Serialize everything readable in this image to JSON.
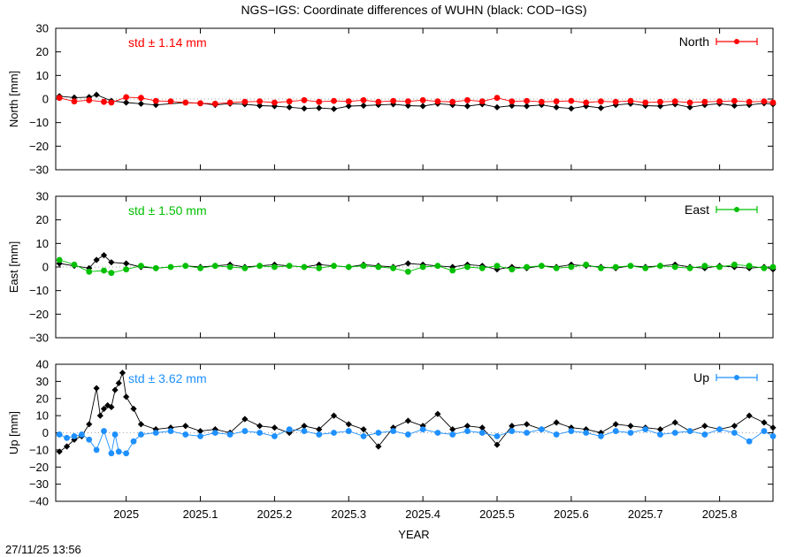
{
  "title": "NGS−IGS: Coordinate differences of WUHN (black: COD−IGS)",
  "footer_timestamp": "27/11/25 13:56",
  "chart_data": [
    {
      "type": "line",
      "component": "North",
      "ylabel": "North [mm]",
      "std_label": "std ± 1.14 mm",
      "legend": "North",
      "legend_position": "top-right",
      "ylim": [
        -30,
        30
      ],
      "yticks": [
        -30,
        -20,
        -10,
        0,
        10,
        20,
        30
      ],
      "color": "#ff0000",
      "reference_color": "#000000",
      "reference_series": [
        [
          2024.91,
          1.2
        ],
        [
          2024.93,
          0.6
        ],
        [
          2024.95,
          0.8
        ],
        [
          2024.96,
          1.8
        ],
        [
          2024.98,
          -0.8
        ],
        [
          2025.0,
          -1.5
        ],
        [
          2025.02,
          -2.0
        ],
        [
          2025.04,
          -2.5
        ],
        [
          2025.08,
          -1.5
        ],
        [
          2025.1,
          -1.8
        ],
        [
          2025.12,
          -2.5
        ],
        [
          2025.14,
          -2.0
        ],
        [
          2025.16,
          -2.2
        ],
        [
          2025.18,
          -2.8
        ],
        [
          2025.2,
          -3.0
        ],
        [
          2025.22,
          -3.5
        ],
        [
          2025.24,
          -4.0
        ],
        [
          2025.26,
          -3.8
        ],
        [
          2025.28,
          -4.2
        ],
        [
          2025.3,
          -3.0
        ],
        [
          2025.32,
          -2.8
        ],
        [
          2025.34,
          -2.5
        ],
        [
          2025.36,
          -2.2
        ],
        [
          2025.38,
          -2.8
        ],
        [
          2025.4,
          -3.0
        ],
        [
          2025.42,
          -2.0
        ],
        [
          2025.44,
          -2.5
        ],
        [
          2025.46,
          -3.0
        ],
        [
          2025.48,
          -2.2
        ],
        [
          2025.5,
          -3.5
        ],
        [
          2025.52,
          -2.8
        ],
        [
          2025.54,
          -3.0
        ],
        [
          2025.56,
          -2.5
        ],
        [
          2025.58,
          -3.5
        ],
        [
          2025.6,
          -4.0
        ],
        [
          2025.62,
          -3.0
        ],
        [
          2025.64,
          -3.8
        ],
        [
          2025.66,
          -2.5
        ],
        [
          2025.68,
          -2.0
        ],
        [
          2025.7,
          -2.8
        ],
        [
          2025.72,
          -3.0
        ],
        [
          2025.74,
          -2.2
        ],
        [
          2025.76,
          -3.5
        ],
        [
          2025.78,
          -2.5
        ],
        [
          2025.8,
          -2.0
        ],
        [
          2025.82,
          -2.8
        ],
        [
          2025.84,
          -2.5
        ],
        [
          2025.86,
          -1.8
        ],
        [
          2025.872,
          -2.2
        ]
      ],
      "series": [
        [
          2024.91,
          0.5
        ],
        [
          2024.93,
          -1.0
        ],
        [
          2024.95,
          -0.5
        ],
        [
          2024.97,
          -1.2
        ],
        [
          2024.98,
          -1.5
        ],
        [
          2025.0,
          0.8
        ],
        [
          2025.02,
          0.5
        ],
        [
          2025.04,
          -0.8
        ],
        [
          2025.06,
          -1.0
        ],
        [
          2025.08,
          -1.5
        ],
        [
          2025.1,
          -1.8
        ],
        [
          2025.12,
          -2.0
        ],
        [
          2025.14,
          -1.5
        ],
        [
          2025.16,
          -1.2
        ],
        [
          2025.18,
          -1.0
        ],
        [
          2025.2,
          -1.5
        ],
        [
          2025.22,
          -1.0
        ],
        [
          2025.24,
          -0.5
        ],
        [
          2025.26,
          -1.2
        ],
        [
          2025.28,
          -0.8
        ],
        [
          2025.3,
          -1.0
        ],
        [
          2025.32,
          -0.5
        ],
        [
          2025.34,
          -1.2
        ],
        [
          2025.36,
          -0.8
        ],
        [
          2025.38,
          -1.0
        ],
        [
          2025.4,
          -0.5
        ],
        [
          2025.42,
          -1.0
        ],
        [
          2025.44,
          -1.2
        ],
        [
          2025.46,
          -0.5
        ],
        [
          2025.48,
          -1.0
        ],
        [
          2025.5,
          0.5
        ],
        [
          2025.52,
          -1.0
        ],
        [
          2025.54,
          -0.8
        ],
        [
          2025.56,
          -1.2
        ],
        [
          2025.58,
          -1.0
        ],
        [
          2025.6,
          -0.8
        ],
        [
          2025.62,
          -1.5
        ],
        [
          2025.64,
          -1.0
        ],
        [
          2025.66,
          -1.2
        ],
        [
          2025.68,
          -0.8
        ],
        [
          2025.7,
          -1.5
        ],
        [
          2025.72,
          -1.2
        ],
        [
          2025.74,
          -1.0
        ],
        [
          2025.76,
          -1.5
        ],
        [
          2025.78,
          -1.2
        ],
        [
          2025.8,
          -1.0
        ],
        [
          2025.82,
          -0.8
        ],
        [
          2025.84,
          -1.2
        ],
        [
          2025.86,
          -1.0
        ],
        [
          2025.872,
          -1.5
        ]
      ]
    },
    {
      "type": "line",
      "component": "East",
      "ylabel": "East [mm]",
      "std_label": "std ± 1.50 mm",
      "legend": "East",
      "legend_position": "top-right",
      "ylim": [
        -30,
        30
      ],
      "yticks": [
        -30,
        -20,
        -10,
        0,
        10,
        20,
        30
      ],
      "color": "#00c000",
      "reference_color": "#000000",
      "reference_series": [
        [
          2024.91,
          1.5
        ],
        [
          2024.93,
          0.5
        ],
        [
          2024.95,
          -0.5
        ],
        [
          2024.96,
          3.0
        ],
        [
          2024.97,
          5.0
        ],
        [
          2024.98,
          2.0
        ],
        [
          2025.0,
          1.5
        ],
        [
          2025.02,
          0.0
        ],
        [
          2025.04,
          -0.5
        ],
        [
          2025.08,
          0.5
        ],
        [
          2025.1,
          0.0
        ],
        [
          2025.12,
          0.5
        ],
        [
          2025.14,
          1.0
        ],
        [
          2025.16,
          0.0
        ],
        [
          2025.18,
          0.5
        ],
        [
          2025.2,
          1.0
        ],
        [
          2025.22,
          0.5
        ],
        [
          2025.24,
          0.0
        ],
        [
          2025.26,
          1.0
        ],
        [
          2025.28,
          0.5
        ],
        [
          2025.3,
          0.0
        ],
        [
          2025.32,
          1.0
        ],
        [
          2025.34,
          0.5
        ],
        [
          2025.36,
          0.0
        ],
        [
          2025.38,
          1.5
        ],
        [
          2025.4,
          1.0
        ],
        [
          2025.42,
          0.5
        ],
        [
          2025.44,
          0.0
        ],
        [
          2025.46,
          1.0
        ],
        [
          2025.48,
          0.5
        ],
        [
          2025.5,
          -1.0
        ],
        [
          2025.52,
          0.0
        ],
        [
          2025.54,
          -0.5
        ],
        [
          2025.56,
          0.5
        ],
        [
          2025.58,
          0.0
        ],
        [
          2025.6,
          1.0
        ],
        [
          2025.62,
          0.5
        ],
        [
          2025.64,
          0.0
        ],
        [
          2025.66,
          -0.5
        ],
        [
          2025.68,
          0.5
        ],
        [
          2025.7,
          0.0
        ],
        [
          2025.72,
          0.5
        ],
        [
          2025.74,
          1.0
        ],
        [
          2025.76,
          0.0
        ],
        [
          2025.78,
          -0.5
        ],
        [
          2025.8,
          0.5
        ],
        [
          2025.82,
          0.0
        ],
        [
          2025.84,
          -0.5
        ],
        [
          2025.86,
          0.0
        ],
        [
          2025.872,
          -1.0
        ]
      ],
      "series": [
        [
          2024.91,
          3.0
        ],
        [
          2024.93,
          1.0
        ],
        [
          2024.95,
          -2.0
        ],
        [
          2024.97,
          -1.5
        ],
        [
          2024.98,
          -2.5
        ],
        [
          2025.0,
          -1.0
        ],
        [
          2025.02,
          0.5
        ],
        [
          2025.04,
          -0.5
        ],
        [
          2025.06,
          0.0
        ],
        [
          2025.08,
          0.5
        ],
        [
          2025.1,
          -0.5
        ],
        [
          2025.12,
          0.5
        ],
        [
          2025.14,
          0.0
        ],
        [
          2025.16,
          -0.5
        ],
        [
          2025.18,
          0.5
        ],
        [
          2025.2,
          0.0
        ],
        [
          2025.22,
          0.5
        ],
        [
          2025.24,
          0.0
        ],
        [
          2025.26,
          -0.5
        ],
        [
          2025.28,
          0.5
        ],
        [
          2025.3,
          0.0
        ],
        [
          2025.32,
          0.5
        ],
        [
          2025.34,
          0.0
        ],
        [
          2025.36,
          -0.5
        ],
        [
          2025.38,
          -2.0
        ],
        [
          2025.4,
          0.0
        ],
        [
          2025.42,
          0.5
        ],
        [
          2025.44,
          -1.5
        ],
        [
          2025.46,
          0.0
        ],
        [
          2025.48,
          -0.5
        ],
        [
          2025.5,
          0.5
        ],
        [
          2025.52,
          -1.0
        ],
        [
          2025.54,
          0.0
        ],
        [
          2025.56,
          0.5
        ],
        [
          2025.58,
          -0.5
        ],
        [
          2025.6,
          0.0
        ],
        [
          2025.62,
          1.0
        ],
        [
          2025.64,
          -0.5
        ],
        [
          2025.66,
          0.0
        ],
        [
          2025.68,
          0.5
        ],
        [
          2025.7,
          -0.5
        ],
        [
          2025.72,
          0.5
        ],
        [
          2025.74,
          0.0
        ],
        [
          2025.76,
          -0.5
        ],
        [
          2025.78,
          0.5
        ],
        [
          2025.8,
          0.0
        ],
        [
          2025.82,
          1.0
        ],
        [
          2025.84,
          0.5
        ],
        [
          2025.86,
          -0.5
        ],
        [
          2025.872,
          0.0
        ]
      ]
    },
    {
      "type": "line",
      "component": "Up",
      "ylabel": "Up [mm]",
      "std_label": "std ± 3.62 mm",
      "legend": "Up",
      "legend_position": "top-right",
      "ylim": [
        -40,
        40
      ],
      "yticks": [
        -40,
        -30,
        -20,
        -10,
        0,
        10,
        20,
        30,
        40
      ],
      "color": "#1e90ff",
      "reference_color": "#000000",
      "reference_series": [
        [
          2024.91,
          -11.0
        ],
        [
          2024.92,
          -8.0
        ],
        [
          2024.93,
          -4.0
        ],
        [
          2024.94,
          -2.0
        ],
        [
          2024.95,
          5.0
        ],
        [
          2024.96,
          26.0
        ],
        [
          2024.965,
          10.0
        ],
        [
          2024.97,
          14.0
        ],
        [
          2024.975,
          16.0
        ],
        [
          2024.98,
          15.0
        ],
        [
          2024.985,
          25.0
        ],
        [
          2024.99,
          29.0
        ],
        [
          2024.995,
          35.0
        ],
        [
          2025.0,
          21.0
        ],
        [
          2025.01,
          14.0
        ],
        [
          2025.02,
          5.0
        ],
        [
          2025.04,
          2.0
        ],
        [
          2025.06,
          3.0
        ],
        [
          2025.08,
          4.0
        ],
        [
          2025.1,
          1.0
        ],
        [
          2025.12,
          2.0
        ],
        [
          2025.14,
          0.0
        ],
        [
          2025.16,
          8.0
        ],
        [
          2025.18,
          4.0
        ],
        [
          2025.2,
          3.0
        ],
        [
          2025.22,
          0.0
        ],
        [
          2025.24,
          4.0
        ],
        [
          2025.26,
          2.0
        ],
        [
          2025.28,
          10.0
        ],
        [
          2025.3,
          5.0
        ],
        [
          2025.32,
          2.0
        ],
        [
          2025.34,
          -8.0
        ],
        [
          2025.36,
          3.0
        ],
        [
          2025.38,
          7.0
        ],
        [
          2025.4,
          4.0
        ],
        [
          2025.42,
          11.0
        ],
        [
          2025.44,
          2.0
        ],
        [
          2025.46,
          4.0
        ],
        [
          2025.48,
          3.0
        ],
        [
          2025.5,
          -7.0
        ],
        [
          2025.52,
          4.0
        ],
        [
          2025.54,
          5.0
        ],
        [
          2025.56,
          2.0
        ],
        [
          2025.58,
          6.0
        ],
        [
          2025.6,
          3.0
        ],
        [
          2025.62,
          2.0
        ],
        [
          2025.64,
          0.0
        ],
        [
          2025.66,
          5.0
        ],
        [
          2025.68,
          4.0
        ],
        [
          2025.7,
          3.0
        ],
        [
          2025.72,
          2.0
        ],
        [
          2025.74,
          6.0
        ],
        [
          2025.76,
          1.0
        ],
        [
          2025.78,
          4.0
        ],
        [
          2025.8,
          2.0
        ],
        [
          2025.82,
          4.0
        ],
        [
          2025.84,
          10.0
        ],
        [
          2025.86,
          6.0
        ],
        [
          2025.872,
          3.0
        ]
      ],
      "series": [
        [
          2024.91,
          -1.0
        ],
        [
          2024.92,
          -3.0
        ],
        [
          2024.93,
          -2.0
        ],
        [
          2024.94,
          -1.0
        ],
        [
          2024.95,
          -4.0
        ],
        [
          2024.96,
          -10.0
        ],
        [
          2024.97,
          1.0
        ],
        [
          2024.98,
          -12.0
        ],
        [
          2024.985,
          -1.0
        ],
        [
          2024.99,
          -11.0
        ],
        [
          2025.0,
          -12.0
        ],
        [
          2025.01,
          -5.0
        ],
        [
          2025.02,
          -1.0
        ],
        [
          2025.04,
          0.0
        ],
        [
          2025.06,
          1.0
        ],
        [
          2025.08,
          -1.0
        ],
        [
          2025.1,
          -2.0
        ],
        [
          2025.12,
          0.0
        ],
        [
          2025.14,
          -1.0
        ],
        [
          2025.16,
          1.0
        ],
        [
          2025.18,
          0.0
        ],
        [
          2025.2,
          -2.0
        ],
        [
          2025.22,
          2.0
        ],
        [
          2025.24,
          1.0
        ],
        [
          2025.26,
          -1.0
        ],
        [
          2025.28,
          0.0
        ],
        [
          2025.3,
          1.0
        ],
        [
          2025.32,
          -2.0
        ],
        [
          2025.34,
          0.0
        ],
        [
          2025.36,
          1.0
        ],
        [
          2025.38,
          -1.0
        ],
        [
          2025.4,
          2.0
        ],
        [
          2025.42,
          0.0
        ],
        [
          2025.44,
          -1.0
        ],
        [
          2025.46,
          1.0
        ],
        [
          2025.48,
          0.0
        ],
        [
          2025.5,
          -2.0
        ],
        [
          2025.52,
          1.0
        ],
        [
          2025.54,
          0.0
        ],
        [
          2025.56,
          2.0
        ],
        [
          2025.58,
          -1.0
        ],
        [
          2025.6,
          1.0
        ],
        [
          2025.62,
          0.0
        ],
        [
          2025.64,
          -2.0
        ],
        [
          2025.66,
          1.0
        ],
        [
          2025.68,
          0.0
        ],
        [
          2025.7,
          2.0
        ],
        [
          2025.72,
          -1.0
        ],
        [
          2025.74,
          0.0
        ],
        [
          2025.76,
          1.0
        ],
        [
          2025.78,
          -1.0
        ],
        [
          2025.8,
          2.0
        ],
        [
          2025.82,
          0.0
        ],
        [
          2025.84,
          -5.0
        ],
        [
          2025.86,
          1.0
        ],
        [
          2025.872,
          -2.0
        ]
      ]
    }
  ],
  "x_axis": {
    "xlabel": "YEAR",
    "xlim": [
      2024.905,
      2025.872
    ],
    "ticks": [
      2025,
      2025.1,
      2025.2,
      2025.3,
      2025.4,
      2025.5,
      2025.6,
      2025.7,
      2025.8
    ],
    "tick_labels": [
      "2025",
      "2025.1",
      "2025.2",
      "2025.3",
      "2025.4",
      "2025.5",
      "2025.6",
      "2025.7",
      "2025.8"
    ]
  }
}
